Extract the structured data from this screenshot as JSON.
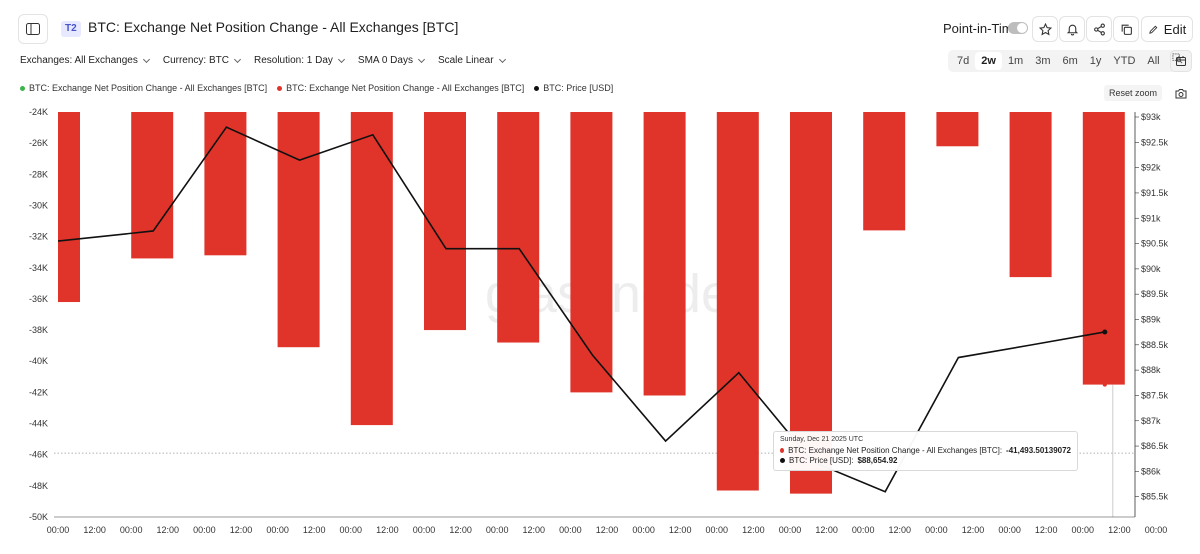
{
  "header": {
    "tier": "T2",
    "title": "BTC: Exchange Net Position Change - All Exchanges [BTC]",
    "point_in_time_label": "Point-in-Time",
    "edit_label": "Edit"
  },
  "filters": [
    {
      "label": "Exchanges: All Exchanges"
    },
    {
      "label": "Currency: BTC"
    },
    {
      "label": "Resolution: 1 Day"
    },
    {
      "label": "SMA 0 Days"
    },
    {
      "label": "Scale Linear"
    }
  ],
  "ranges": [
    "7d",
    "2w",
    "1m",
    "3m",
    "6m",
    "1y",
    "YTD",
    "All"
  ],
  "active_range": "2w",
  "legend": [
    {
      "label": "BTC: Exchange Net Position Change - All Exchanges [BTC]",
      "color": "#3bb54a"
    },
    {
      "label": "BTC: Exchange Net Position Change - All Exchanges [BTC]",
      "color": "#e0342a"
    },
    {
      "label": "BTC: Price [USD]",
      "color": "#111111"
    }
  ],
  "reset_zoom_label": "Reset zoom",
  "watermark": "glassnode",
  "tooltip": {
    "date": "Sunday, Dec 21 2025 UTC",
    "series1_label": "BTC: Exchange Net Position Change - All Exchanges [BTC]: ",
    "series1_value": "-41,493.50139072",
    "series2_label": "BTC: Price [USD]: ",
    "series2_value": "$88,654.92"
  },
  "chart_data": {
    "type": "bar",
    "x_tick_labels": [
      "00:00",
      "12:00",
      "00:00",
      "12:00",
      "00:00",
      "12:00",
      "00:00",
      "12:00",
      "00:00",
      "12:00",
      "00:00",
      "12:00",
      "00:00",
      "12:00",
      "00:00",
      "12:00",
      "00:00",
      "12:00",
      "00:00",
      "12:00",
      "00:00",
      "12:00",
      "00:00",
      "12:00",
      "00:00",
      "12:00",
      "00:00",
      "12:00",
      "00:00",
      "12:00",
      "00:00"
    ],
    "y_left": {
      "min": -50000,
      "max": -24000,
      "ticks": [
        "-24K",
        "-26K",
        "-28K",
        "-30K",
        "-32K",
        "-34K",
        "-36K",
        "-38K",
        "-40K",
        "-42K",
        "-44K",
        "-46K",
        "-48K",
        "-50K"
      ]
    },
    "y_right": {
      "min": 85000,
      "max": 93000,
      "ticks": [
        "$93k",
        "$92.5k",
        "$92k",
        "$91.5k",
        "$91k",
        "$90.5k",
        "$90k",
        "$89.5k",
        "$89k",
        "$88.5k",
        "$88k",
        "$87.5k",
        "$87k",
        "$86.5k",
        "$86k",
        "$85.5k"
      ]
    },
    "series": [
      {
        "name": "BTC: Exchange Net Position Change - All Exchanges [BTC]",
        "color": "#e0342a",
        "type": "bar",
        "values": [
          -36200,
          -33400,
          -33200,
          -39100,
          -44100,
          -38000,
          -38800,
          -42000,
          -42200,
          -48300,
          -48500,
          -31600,
          -26200,
          -34600,
          -41500
        ]
      },
      {
        "name": "BTC: Price [USD]",
        "color": "#111111",
        "type": "line",
        "values": [
          90450,
          90650,
          92700,
          92050,
          92550,
          90300,
          90300,
          88200,
          86500,
          87850,
          86100,
          85500,
          88150,
          88400,
          88655
        ]
      }
    ],
    "crosshair_y": -45900,
    "active_index": 14,
    "grid": false,
    "legend_position": "top-left"
  }
}
